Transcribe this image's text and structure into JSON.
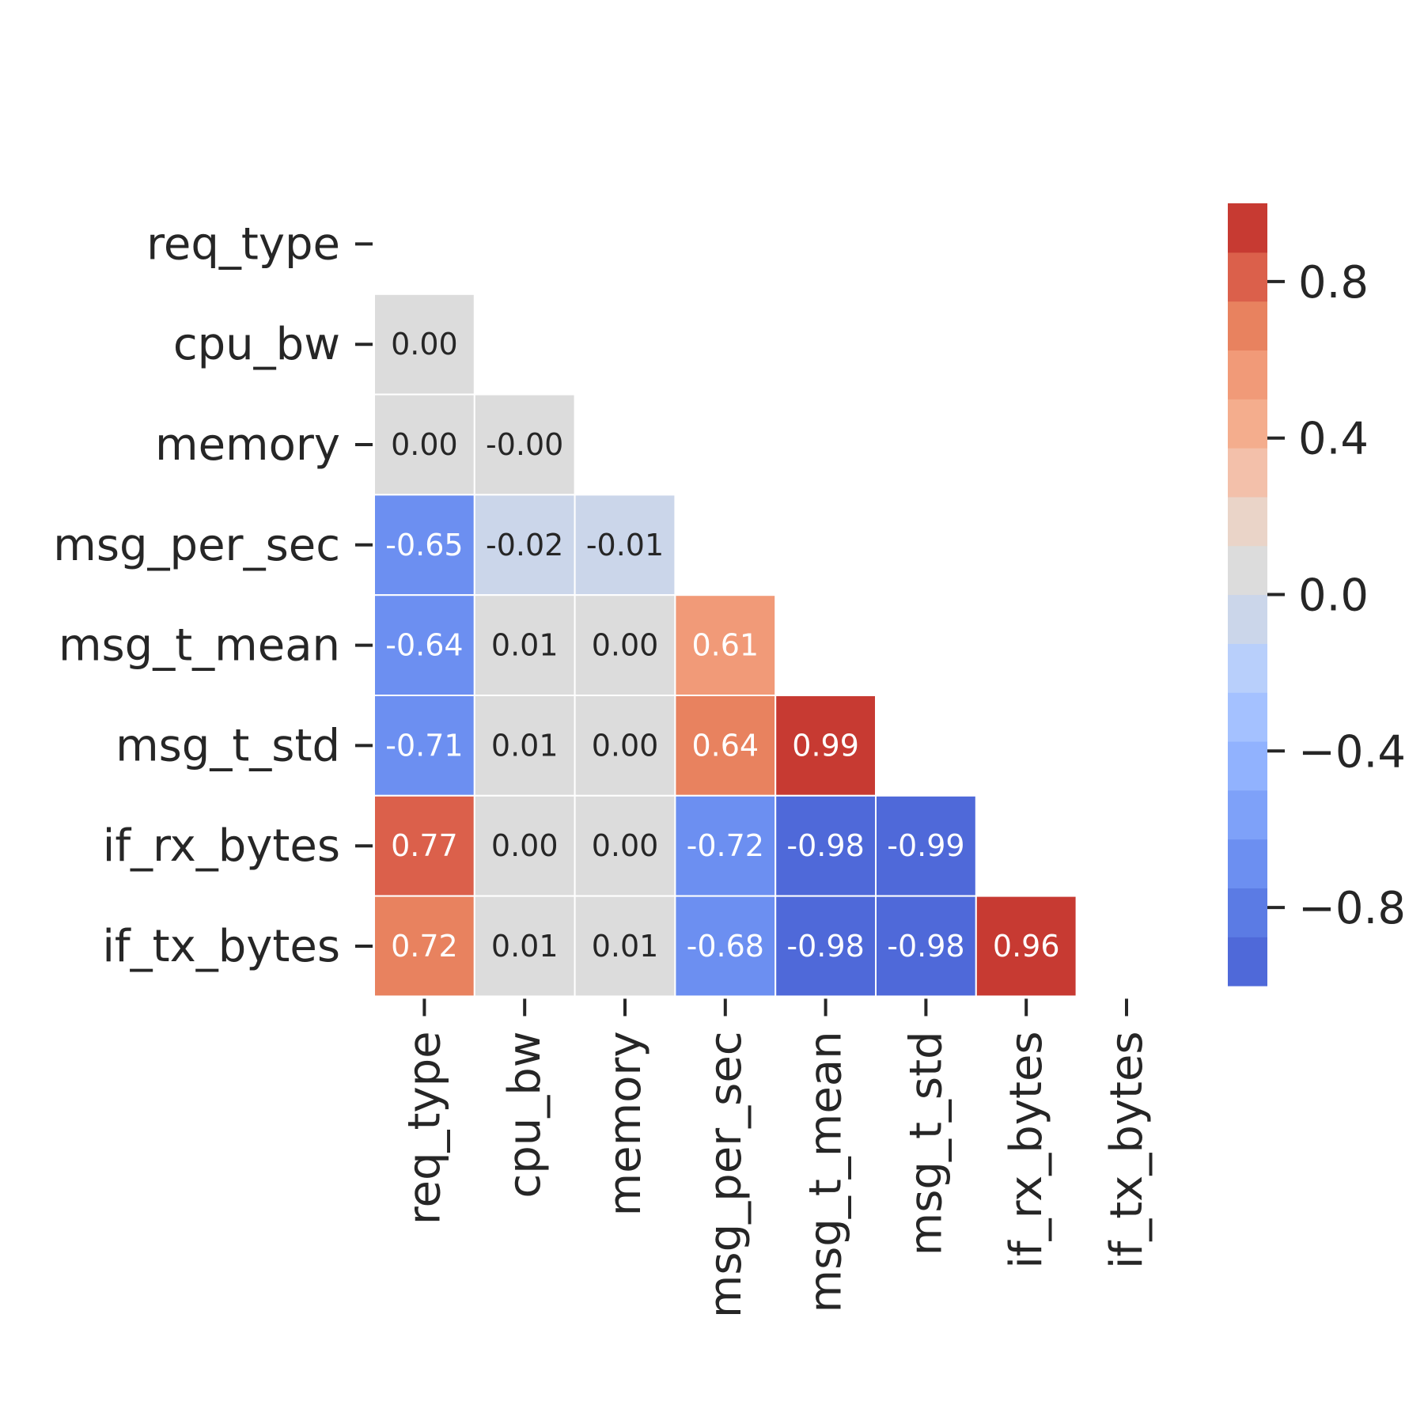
{
  "chart_data": {
    "type": "heatmap",
    "title": "",
    "xlabel": "",
    "ylabel": "",
    "row_labels": [
      "req_type",
      "cpu_bw",
      "memory",
      "msg_per_sec",
      "msg_t_mean",
      "msg_t_std",
      "if_rx_bytes",
      "if_tx_bytes"
    ],
    "col_labels": [
      "req_type",
      "cpu_bw",
      "memory",
      "msg_per_sec",
      "msg_t_mean",
      "msg_t_std",
      "if_rx_bytes",
      "if_tx_bytes"
    ],
    "mask": "upper triangle including diagonal",
    "cells": [
      [
        null,
        null,
        null,
        null,
        null,
        null,
        null,
        null
      ],
      [
        "0.00",
        null,
        null,
        null,
        null,
        null,
        null,
        null
      ],
      [
        "0.00",
        "-0.00",
        null,
        null,
        null,
        null,
        null,
        null
      ],
      [
        "-0.65",
        "-0.02",
        "-0.01",
        null,
        null,
        null,
        null,
        null
      ],
      [
        "-0.64",
        "0.01",
        "0.00",
        "0.61",
        null,
        null,
        null,
        null
      ],
      [
        "-0.71",
        "0.01",
        "0.00",
        "0.64",
        "0.99",
        null,
        null,
        null
      ],
      [
        "0.77",
        "0.00",
        "0.00",
        "-0.72",
        "-0.98",
        "-0.99",
        null,
        null
      ],
      [
        "0.72",
        "0.01",
        "0.01",
        "-0.68",
        "-0.98",
        "-0.98",
        "0.96",
        null
      ]
    ],
    "colorbar": {
      "vmin": -1.0,
      "vmax": 1.0,
      "ticks": [
        0.8,
        0.4,
        0.0,
        -0.4,
        -0.8
      ],
      "tick_labels": [
        "0.8",
        "0.4",
        "0.0",
        "−0.4",
        "−0.8"
      ],
      "colors_low_to_high": [
        "#4f69d9",
        "#5b7be4",
        "#6c8ff1",
        "#7ea1f9",
        "#91b2fe",
        "#a4c1ff",
        "#b8cffb",
        "#cbd6ea",
        "#dcdcdc",
        "#ead4c8",
        "#f3c0aa",
        "#f4ad8d",
        "#f19a78",
        "#e8825f",
        "#db604b",
        "#c73a32"
      ]
    },
    "grid": false,
    "legend": "colorbar right"
  }
}
